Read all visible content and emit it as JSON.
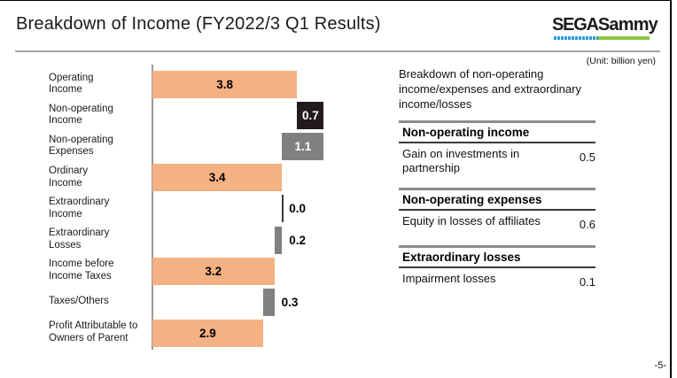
{
  "slide": {
    "title": "Breakdown of Income (FY2022/3 Q1 Results)",
    "unit_note": "(Unit: billion yen)",
    "page_number": "-5-",
    "logo": {
      "sega": "SEGA",
      "sammy": "Sammy",
      "blue": "#2f9bd8",
      "green": "#8cc63f"
    }
  },
  "chart_data": {
    "type": "bar",
    "subtype": "horizontal-waterfall",
    "title": "Breakdown of Income (FY2022/3 Q1 Results)",
    "unit": "billion yen",
    "xlim": [
      0,
      4.7
    ],
    "grid": false,
    "colors": {
      "orange": "#F4B183",
      "dark": "#231A20",
      "gray": "#808080",
      "zero-line": "#3a3a3a"
    },
    "rows": [
      {
        "name": "operating-income",
        "label": "Operating\nIncome",
        "value": 3.8,
        "display": "3.8",
        "start": 0,
        "end": 3.8,
        "style": "orange",
        "value_placement": "inside",
        "value_color": "#000000"
      },
      {
        "name": "non-operating-income",
        "label": "Non-operating\nIncome",
        "value": 0.7,
        "display": "0.7",
        "start": 3.8,
        "end": 4.5,
        "style": "dark",
        "value_placement": "inside",
        "value_color": "#ffffff"
      },
      {
        "name": "non-operating-expenses",
        "label": "Non-operating\nExpenses",
        "value": 1.1,
        "display": "1.1",
        "start": 3.4,
        "end": 4.5,
        "style": "gray",
        "value_placement": "inside",
        "value_color": "#ffffff"
      },
      {
        "name": "ordinary-income",
        "label": "Ordinary\nIncome",
        "value": 3.4,
        "display": "3.4",
        "start": 0,
        "end": 3.4,
        "style": "orange",
        "value_placement": "inside",
        "value_color": "#000000"
      },
      {
        "name": "extraordinary-income",
        "label": "Extraordinary\nIncome",
        "value": 0.0,
        "display": "0.0",
        "start": 3.4,
        "end": 3.4,
        "style": "zero-line",
        "value_placement": "outside",
        "value_color": "#000000"
      },
      {
        "name": "extraordinary-losses",
        "label": "Extraordinary\nLosses",
        "value": 0.2,
        "display": "0.2",
        "start": 3.2,
        "end": 3.4,
        "style": "gray",
        "value_placement": "outside",
        "value_color": "#000000"
      },
      {
        "name": "income-before-taxes",
        "label": "Income before\nIncome Taxes",
        "value": 3.2,
        "display": "3.2",
        "start": 0,
        "end": 3.2,
        "style": "orange",
        "value_placement": "inside",
        "value_color": "#000000"
      },
      {
        "name": "taxes-others",
        "label": "Taxes/Others",
        "value": 0.3,
        "display": "0.3",
        "start": 2.9,
        "end": 3.2,
        "style": "gray",
        "value_placement": "outside",
        "value_color": "#000000"
      },
      {
        "name": "profit-owners-of-parent",
        "label": "Profit Attributable to\nOwners of Parent",
        "value": 2.9,
        "display": "2.9",
        "start": 0,
        "end": 2.9,
        "style": "orange",
        "value_placement": "inside",
        "value_color": "#000000"
      }
    ]
  },
  "panel": {
    "heading": "Breakdown of non-operating income/expenses and extraordinary income/losses",
    "sections": [
      {
        "name": "non-operating-income",
        "title": "Non-operating income",
        "rows": [
          {
            "item": "Gain on investments in partnership",
            "value": "0.5"
          }
        ]
      },
      {
        "name": "non-operating-expenses",
        "title": "Non-operating expenses",
        "rows": [
          {
            "item": "Equity in losses of affiliates",
            "value": "0.6"
          }
        ]
      },
      {
        "name": "extraordinary-losses",
        "title": "Extraordinary losses",
        "rows": [
          {
            "item": "Impairment losses",
            "value": "0.1"
          }
        ]
      }
    ]
  }
}
